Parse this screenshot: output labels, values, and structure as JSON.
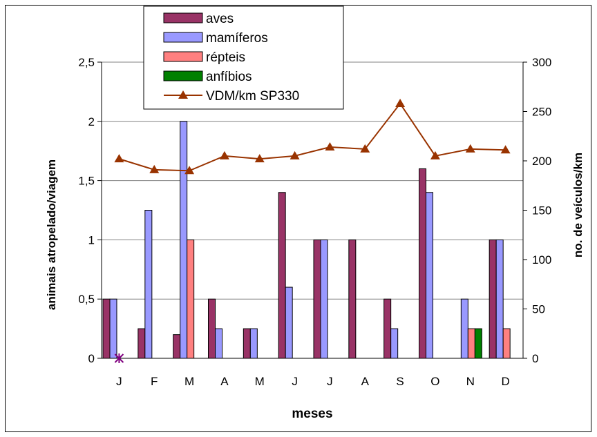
{
  "chart_data": {
    "type": "bar",
    "xlabel": "meses",
    "ylabel": "animais atropelado/viagem",
    "y2label": "no. de veículos/km",
    "categories": [
      "J",
      "F",
      "M",
      "A",
      "M",
      "J",
      "J",
      "A",
      "S",
      "O",
      "N",
      "D"
    ],
    "ylim": [
      0,
      2.5
    ],
    "ylim2": [
      0,
      300
    ],
    "yticks": [
      "0",
      "0,5",
      "1",
      "1,5",
      "2",
      "2,5"
    ],
    "y2ticks": [
      "0",
      "50",
      "100",
      "150",
      "200",
      "250",
      "300"
    ],
    "grid": "horizontal major lines at left-axis ticks",
    "legend_position": "top-left, overlapping plot",
    "series": [
      {
        "name": "aves",
        "type": "bar",
        "color": "#993366",
        "values": [
          0.5,
          0.25,
          0.2,
          0.5,
          0.25,
          1.4,
          1.0,
          1.0,
          0.5,
          1.6,
          0,
          1.0
        ]
      },
      {
        "name": "mamíferos",
        "type": "bar",
        "color": "#9999ff",
        "values": [
          0.5,
          1.25,
          2.0,
          0.25,
          0.25,
          0.6,
          1.0,
          0,
          0.25,
          1.4,
          0.5,
          1.0
        ]
      },
      {
        "name": "répteis",
        "type": "bar",
        "color": "#ff8080",
        "values": [
          0,
          0,
          1.0,
          0,
          0,
          0,
          0,
          0,
          0,
          0,
          0.25,
          0.25
        ]
      },
      {
        "name": "anfíbios",
        "type": "bar",
        "color": "#008000",
        "values": [
          0,
          0,
          0,
          0,
          0,
          0,
          0,
          0,
          0,
          0,
          0.25,
          0
        ]
      },
      {
        "name": "VDM/km SP330",
        "type": "line",
        "axis": "right",
        "color": "#993300",
        "marker": "triangle",
        "values": [
          202,
          191,
          190,
          205,
          202,
          205,
          214,
          212,
          258,
          205,
          212,
          211
        ]
      }
    ],
    "annotations": [
      {
        "category_index": 0,
        "value": 0,
        "marker": "asterisk",
        "color": "#800080"
      }
    ]
  }
}
